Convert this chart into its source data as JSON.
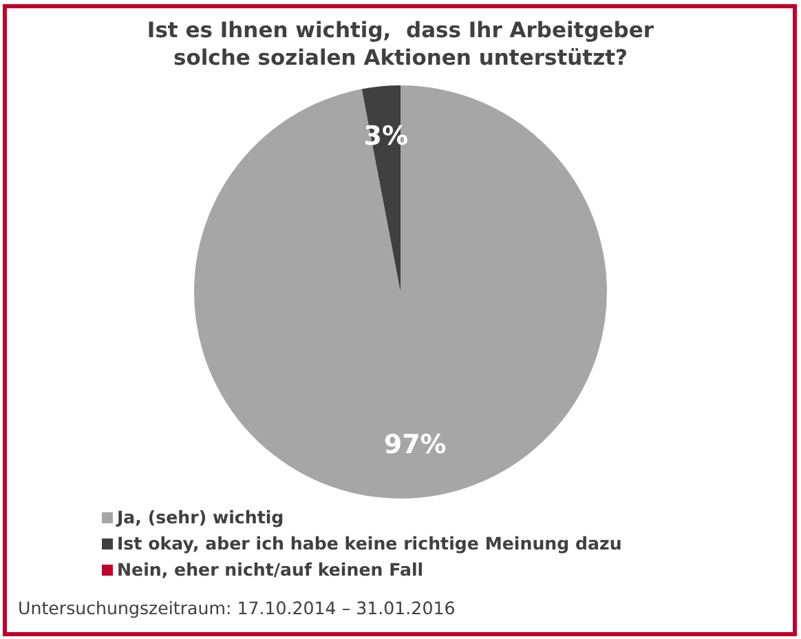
{
  "chart_data": {
    "type": "pie",
    "title": "Ist es Ihnen wichtig,  dass Ihr Arbeitgeber solche sozialen Aktionen unterstützt?",
    "categories": [
      "Ja, (sehr) wichtig",
      "Ist okay, aber ich habe keine richtige Meinung dazu",
      "Nein, eher nicht/auf keinen Fall"
    ],
    "values": [
      97,
      3,
      0
    ],
    "colors": [
      "#a6a6a6",
      "#404040",
      "#c0002b"
    ],
    "value_labels": [
      "97%",
      "3%",
      null
    ],
    "legend": "bottom",
    "annotations": [
      "Untersuchungszeitraum: 17.10.2014 – 31.01.2016"
    ]
  }
}
